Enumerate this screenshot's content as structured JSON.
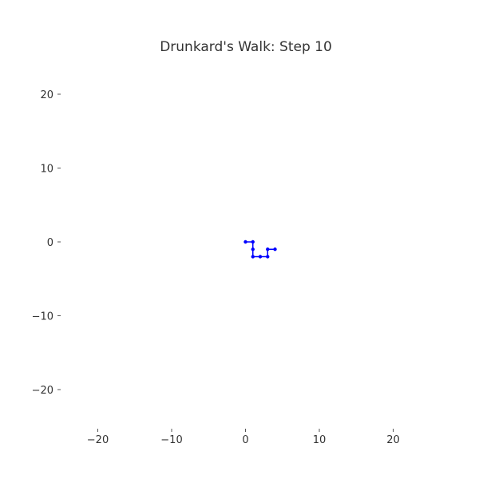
{
  "chart_data": {
    "type": "line",
    "title": "Drunkard's Walk: Step 10",
    "xlabel": "",
    "ylabel": "",
    "xlim": [
      -25,
      25
    ],
    "ylim": [
      -25,
      25
    ],
    "x_ticks": [
      -20,
      -10,
      0,
      10,
      20
    ],
    "y_ticks": [
      20,
      10,
      0,
      -10,
      -20
    ],
    "x_tick_labels": [
      "−20",
      "−10",
      "0",
      "10",
      "20"
    ],
    "y_tick_labels": [
      "20",
      "10",
      "0",
      "−10",
      "−20"
    ],
    "grid": false,
    "series": [
      {
        "color": "#0000ff",
        "marker": "circle",
        "x": [
          0,
          1,
          1,
          1,
          2,
          3,
          3,
          4
        ],
        "y": [
          0,
          0,
          -1,
          -2,
          -2,
          -2,
          -1,
          -1
        ]
      }
    ]
  }
}
